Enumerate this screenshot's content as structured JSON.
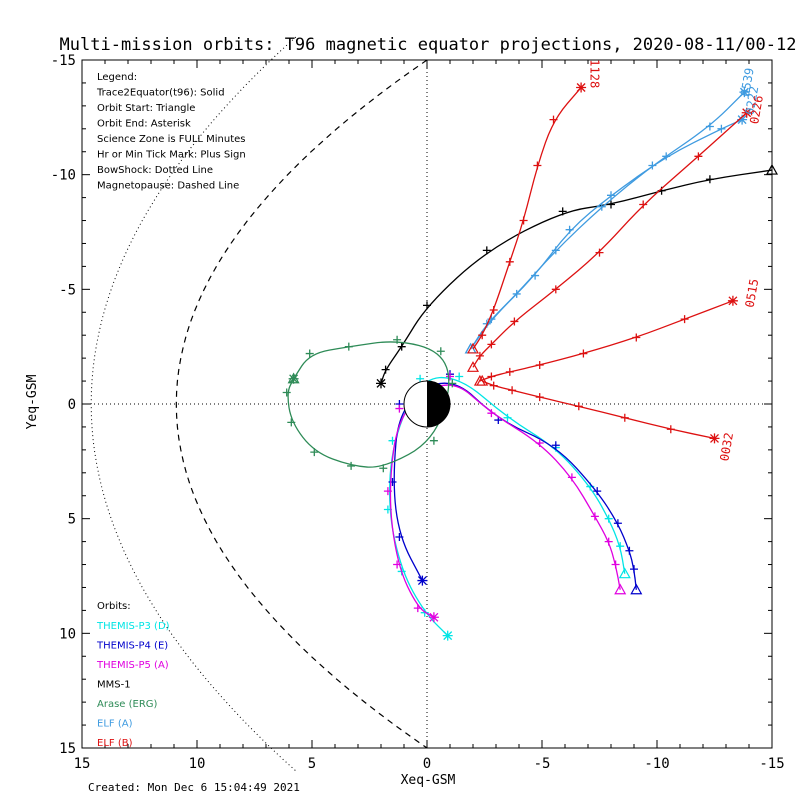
{
  "chart_data": {
    "type": "scatter",
    "title": "Multi-mission orbits: T96 magnetic equator projections, 2020-08-11/00-12",
    "xlabel": "Xeq-GSM",
    "ylabel": "Yeq-GSM",
    "xlim": [
      15,
      -15
    ],
    "ylim": [
      -15,
      15
    ],
    "x_ticks": [
      "15",
      "10",
      "5",
      "0",
      "-5",
      "-10",
      "-15"
    ],
    "y_ticks": [
      "-15",
      "-10",
      "-5",
      "0",
      "5",
      "10",
      "15"
    ],
    "legend": [
      "Legend:",
      "Trace2Equator(t96): Solid",
      "Orbit Start: Triangle",
      "Orbit End: Asterisk",
      "Science Zone is FULL Minutes",
      "Hr or Min Tick Mark: Plus Sign",
      "BowShock: Dotted Line",
      "Magnetopause: Dashed Line"
    ],
    "orbits_label": "Orbits:",
    "footer": "Created: Mon Dec  6 15:04:49 2021",
    "colors": {
      "THEMIS-P3 (D)": "#00e5e5",
      "THEMIS-P4 (E)": "#0000cc",
      "THEMIS-P5 (A)": "#e000e0",
      "MMS-1": "#000000",
      "Arase (ERG)": "#2e8b57",
      "ELF (A)": "#3f9be0",
      "ELF (B)": "#dd1111"
    },
    "series": [
      {
        "name": "THEMIS-P3 (D)",
        "points": [
          [
            -8.6,
            7.4
          ],
          [
            -8.4,
            6.2
          ],
          [
            -7.9,
            5.0
          ],
          [
            -7.1,
            3.6
          ],
          [
            -5.6,
            1.9
          ],
          [
            -3.5,
            0.6
          ],
          [
            -1.4,
            -1.2
          ],
          [
            0.3,
            -1.1
          ],
          [
            1.5,
            1.6
          ],
          [
            1.7,
            4.6
          ],
          [
            1.1,
            7.3
          ],
          [
            0.1,
            9.1
          ],
          [
            -0.9,
            10.1
          ]
        ]
      },
      {
        "name": "THEMIS-P4 (E)",
        "points": [
          [
            -9.1,
            8.1
          ],
          [
            -9.0,
            7.2
          ],
          [
            -8.8,
            6.4
          ],
          [
            -8.3,
            5.2
          ],
          [
            -7.4,
            3.8
          ],
          [
            -5.6,
            1.8
          ],
          [
            -3.1,
            0.7
          ],
          [
            -1.0,
            -1.3
          ],
          [
            1.2,
            0.0
          ],
          [
            1.5,
            3.4
          ],
          [
            1.2,
            5.8
          ],
          [
            0.2,
            7.7
          ]
        ]
      },
      {
        "name": "THEMIS-P5 (A)",
        "points": [
          [
            -8.4,
            8.1
          ],
          [
            -8.2,
            7.0
          ],
          [
            -7.9,
            6.0
          ],
          [
            -7.3,
            4.9
          ],
          [
            -6.3,
            3.2
          ],
          [
            -4.9,
            1.7
          ],
          [
            -2.8,
            0.4
          ],
          [
            -1.0,
            -1.2
          ],
          [
            1.2,
            0.2
          ],
          [
            1.7,
            3.8
          ],
          [
            1.3,
            7.0
          ],
          [
            0.4,
            8.9
          ],
          [
            -0.3,
            9.3
          ]
        ]
      },
      {
        "name": "MMS-1",
        "points": [
          [
            -15.0,
            -10.2
          ],
          [
            -12.3,
            -9.8
          ],
          [
            -10.2,
            -9.3
          ],
          [
            -8.0,
            -8.7
          ],
          [
            -5.9,
            -8.4
          ],
          [
            -2.6,
            -6.7
          ],
          [
            0.0,
            -4.3
          ],
          [
            1.1,
            -2.5
          ],
          [
            1.8,
            -1.5
          ],
          [
            2.0,
            -0.9
          ]
        ]
      },
      {
        "name": "Arase (ERG)",
        "points": [
          [
            5.8,
            -1.1
          ],
          [
            5.1,
            -2.2
          ],
          [
            3.4,
            -2.5
          ],
          [
            1.3,
            -2.8
          ],
          [
            -0.6,
            -2.3
          ],
          [
            -1.1,
            -0.9
          ],
          [
            -0.3,
            1.6
          ],
          [
            1.9,
            2.8
          ],
          [
            3.3,
            2.7
          ],
          [
            4.9,
            2.1
          ],
          [
            5.9,
            0.8
          ],
          [
            6.1,
            -0.5
          ],
          [
            5.8,
            -1.1
          ]
        ]
      },
      {
        "name": "ELF (A) 0222",
        "points": [
          [
            -1.9,
            -2.4
          ],
          [
            -2.6,
            -3.5
          ],
          [
            -3.9,
            -4.8
          ],
          [
            -5.6,
            -6.7
          ],
          [
            -7.6,
            -8.6
          ],
          [
            -9.8,
            -10.4
          ],
          [
            -12.3,
            -12.1
          ],
          [
            -13.8,
            -13.6
          ]
        ]
      },
      {
        "name": "ELF (A) 0539",
        "points": [
          [
            -1.9,
            -2.4
          ],
          [
            -2.8,
            -3.7
          ],
          [
            -4.7,
            -5.6
          ],
          [
            -6.2,
            -7.6
          ],
          [
            -8.0,
            -9.1
          ],
          [
            -10.4,
            -10.8
          ],
          [
            -12.8,
            -12.0
          ],
          [
            -13.7,
            -12.4
          ]
        ]
      },
      {
        "name": "ELF (B) 1128",
        "points": [
          [
            -2.0,
            -2.4
          ],
          [
            -2.4,
            -3.0
          ],
          [
            -2.9,
            -4.1
          ],
          [
            -3.6,
            -6.2
          ],
          [
            -4.2,
            -8.0
          ],
          [
            -4.8,
            -10.4
          ],
          [
            -5.5,
            -12.4
          ],
          [
            -6.7,
            -13.8
          ]
        ]
      },
      {
        "name": "ELF (B) 0226",
        "points": [
          [
            -2.0,
            -1.6
          ],
          [
            -2.3,
            -2.1
          ],
          [
            -2.8,
            -2.6
          ],
          [
            -3.8,
            -3.6
          ],
          [
            -5.6,
            -5.0
          ],
          [
            -7.5,
            -6.6
          ],
          [
            -9.4,
            -8.7
          ],
          [
            -11.8,
            -10.8
          ],
          [
            -13.9,
            -12.7
          ]
        ]
      },
      {
        "name": "ELF (B) 0515",
        "points": [
          [
            -2.3,
            -1.0
          ],
          [
            -2.8,
            -1.2
          ],
          [
            -3.6,
            -1.4
          ],
          [
            -4.9,
            -1.7
          ],
          [
            -6.8,
            -2.2
          ],
          [
            -9.1,
            -2.9
          ],
          [
            -11.2,
            -3.7
          ],
          [
            -13.3,
            -4.5
          ]
        ]
      },
      {
        "name": "ELF (B) 0032",
        "points": [
          [
            -2.4,
            -1.0
          ],
          [
            -2.9,
            -0.8
          ],
          [
            -3.7,
            -0.6
          ],
          [
            -4.9,
            -0.3
          ],
          [
            -6.6,
            0.1
          ],
          [
            -8.6,
            0.6
          ],
          [
            -10.6,
            1.1
          ],
          [
            -12.5,
            1.5
          ]
        ]
      }
    ],
    "labels": [
      {
        "text": "1128",
        "x": -7.1,
        "y": -14.4,
        "color": "#dd1111",
        "angle": 90
      },
      {
        "text": "0539",
        "x": -14.1,
        "y": -14.0,
        "color": "#3f9be0",
        "angle": -80
      },
      {
        "text": "0222",
        "x": -14.3,
        "y": -13.2,
        "color": "#3f9be0",
        "angle": -80
      },
      {
        "text": "0226",
        "x": -14.5,
        "y": -12.8,
        "color": "#dd1111",
        "angle": -80
      },
      {
        "text": "0515",
        "x": -14.3,
        "y": -4.8,
        "color": "#dd1111",
        "angle": -80
      },
      {
        "text": "0032",
        "x": -13.2,
        "y": 1.9,
        "color": "#dd1111",
        "angle": -80
      }
    ]
  }
}
